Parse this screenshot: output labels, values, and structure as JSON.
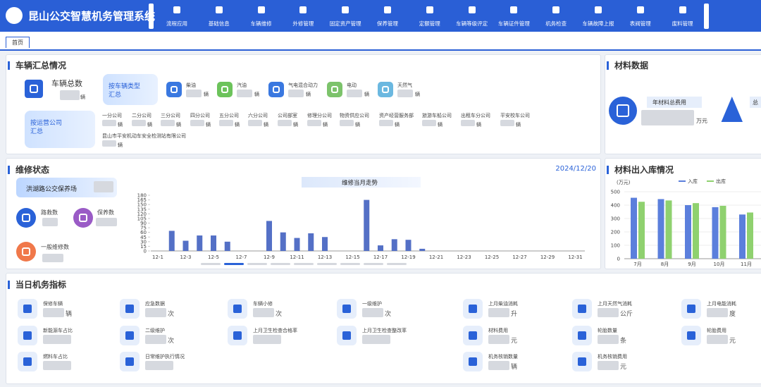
{
  "header": {
    "title": "昆山公交智慧机务管理系统",
    "nav": [
      "流程应用",
      "基础信息",
      "车辆维修",
      "外修管理",
      "固定资产管理",
      "保养管理",
      "定额管理",
      "车辆等级评定",
      "车辆证件管理",
      "机务检查",
      "车辆故障上报",
      "表阀管理",
      "废料管理"
    ]
  },
  "tabs": [
    "首页"
  ],
  "vehicle_summary": {
    "title": "车辆汇总情况",
    "total_label": "车辆总数",
    "total_unit": "辆",
    "by_type_button": [
      "按车辆类型",
      "汇总"
    ],
    "by_company_button": [
      "按运营公司",
      "汇总"
    ],
    "types": [
      {
        "name": "柴油",
        "unit": "辆"
      },
      {
        "name": "汽油",
        "unit": "辆"
      },
      {
        "name": "气电混合动力",
        "unit": "辆"
      },
      {
        "name": "电动",
        "unit": "辆"
      },
      {
        "name": "天然气",
        "unit": "辆"
      }
    ],
    "companies": [
      {
        "name": "一分公司",
        "unit": "辆"
      },
      {
        "name": "二分公司",
        "unit": "辆"
      },
      {
        "name": "三分公司",
        "unit": "辆"
      },
      {
        "name": "四分公司",
        "unit": "辆"
      },
      {
        "name": "五分公司",
        "unit": "辆"
      },
      {
        "name": "六分公司",
        "unit": "辆"
      },
      {
        "name": "公司部室",
        "unit": "辆"
      },
      {
        "name": "修理分公司",
        "unit": "辆"
      },
      {
        "name": "物资供应公司",
        "unit": "辆"
      },
      {
        "name": "资产经营服务部",
        "unit": "辆"
      },
      {
        "name": "旅游车船公司",
        "unit": "辆"
      },
      {
        "name": "出租车分公司",
        "unit": "辆"
      },
      {
        "name": "平安校车公司",
        "unit": "辆"
      },
      {
        "name": "昆山市平安机动车安全检测站有限公司",
        "unit": "辆"
      }
    ]
  },
  "materials": {
    "title": "材料数据",
    "total_cost_label": "年材料总费用",
    "total_cost_unit": "万元",
    "second_label": "总"
  },
  "maintenance": {
    "title": "维修状态",
    "date": "2024/12/20",
    "depot": "洪湖路公交保养场",
    "stats": [
      "路救数",
      "保养数",
      "一般维修数"
    ]
  },
  "chart_data": [
    {
      "type": "bar",
      "title": "维修当月走势",
      "categories": [
        "12-1",
        null,
        "12-3",
        null,
        "12-5",
        null,
        "12-7",
        null,
        "12-9",
        null,
        "12-11",
        null,
        "12-13",
        null,
        "12-15",
        null,
        "12-17",
        null,
        "12-19",
        null,
        "12-21",
        null,
        "12-23",
        null,
        "12-25",
        null,
        "12-27",
        null,
        "12-29",
        null,
        "12-31"
      ],
      "values": [
        0,
        65,
        33,
        50,
        50,
        30,
        0,
        0,
        97,
        60,
        42,
        57,
        45,
        0,
        0,
        165,
        18,
        38,
        36,
        7,
        null,
        null,
        null,
        null,
        null,
        null,
        null,
        null,
        null,
        null,
        null
      ],
      "color": "#5470c6",
      "ylim": [
        0,
        180
      ],
      "yticks": [
        0,
        15,
        30,
        45,
        60,
        75,
        90,
        105,
        120,
        135,
        150,
        165,
        180
      ]
    },
    {
      "type": "grouped_bar",
      "title": "材料出入库情况",
      "y_label": "(万元)",
      "categories": [
        "7月",
        "8月",
        "9月",
        "10月",
        "11月"
      ],
      "series": [
        {
          "name": "入库",
          "color": "#5b7fdc",
          "values": [
            455,
            445,
            400,
            385,
            330
          ]
        },
        {
          "name": "出库",
          "color": "#8fd16f",
          "values": [
            425,
            435,
            415,
            395,
            345
          ]
        }
      ],
      "ylim": [
        0,
        500
      ],
      "yticks": [
        0,
        100,
        200,
        300,
        400,
        500
      ],
      "grid": true
    }
  ],
  "daily": {
    "title": "当日机务指标",
    "items": [
      {
        "label": "保修车辆",
        "unit": "辆"
      },
      {
        "label": "应急数据",
        "unit": "次"
      },
      {
        "label": "车辆小修",
        "unit": "次"
      },
      {
        "label": "一级维护",
        "unit": "次"
      },
      {
        "label": "上月柴油消耗",
        "unit": "升"
      },
      {
        "label": "上月天然气消耗",
        "unit": "公斤"
      },
      {
        "label": "上月电能消耗",
        "unit": "度"
      },
      {
        "label": "新能源车占比"
      },
      {
        "label": "二级维护",
        "unit": "次"
      },
      {
        "label": "上月卫生检查合格率"
      },
      {
        "label": "上月卫生检查整改率"
      },
      {
        "label": "材料费用",
        "unit": "元"
      },
      {
        "label": "轮胎数量",
        "unit": "条"
      },
      {
        "label": "轮胎费用",
        "unit": "元"
      },
      {
        "label": "燃料车占比"
      },
      {
        "label": "日常维护执行情况"
      },
      {
        "label": "机务核销数量",
        "unit": "辆"
      },
      {
        "label": "机务核销费用",
        "unit": "元"
      }
    ]
  }
}
